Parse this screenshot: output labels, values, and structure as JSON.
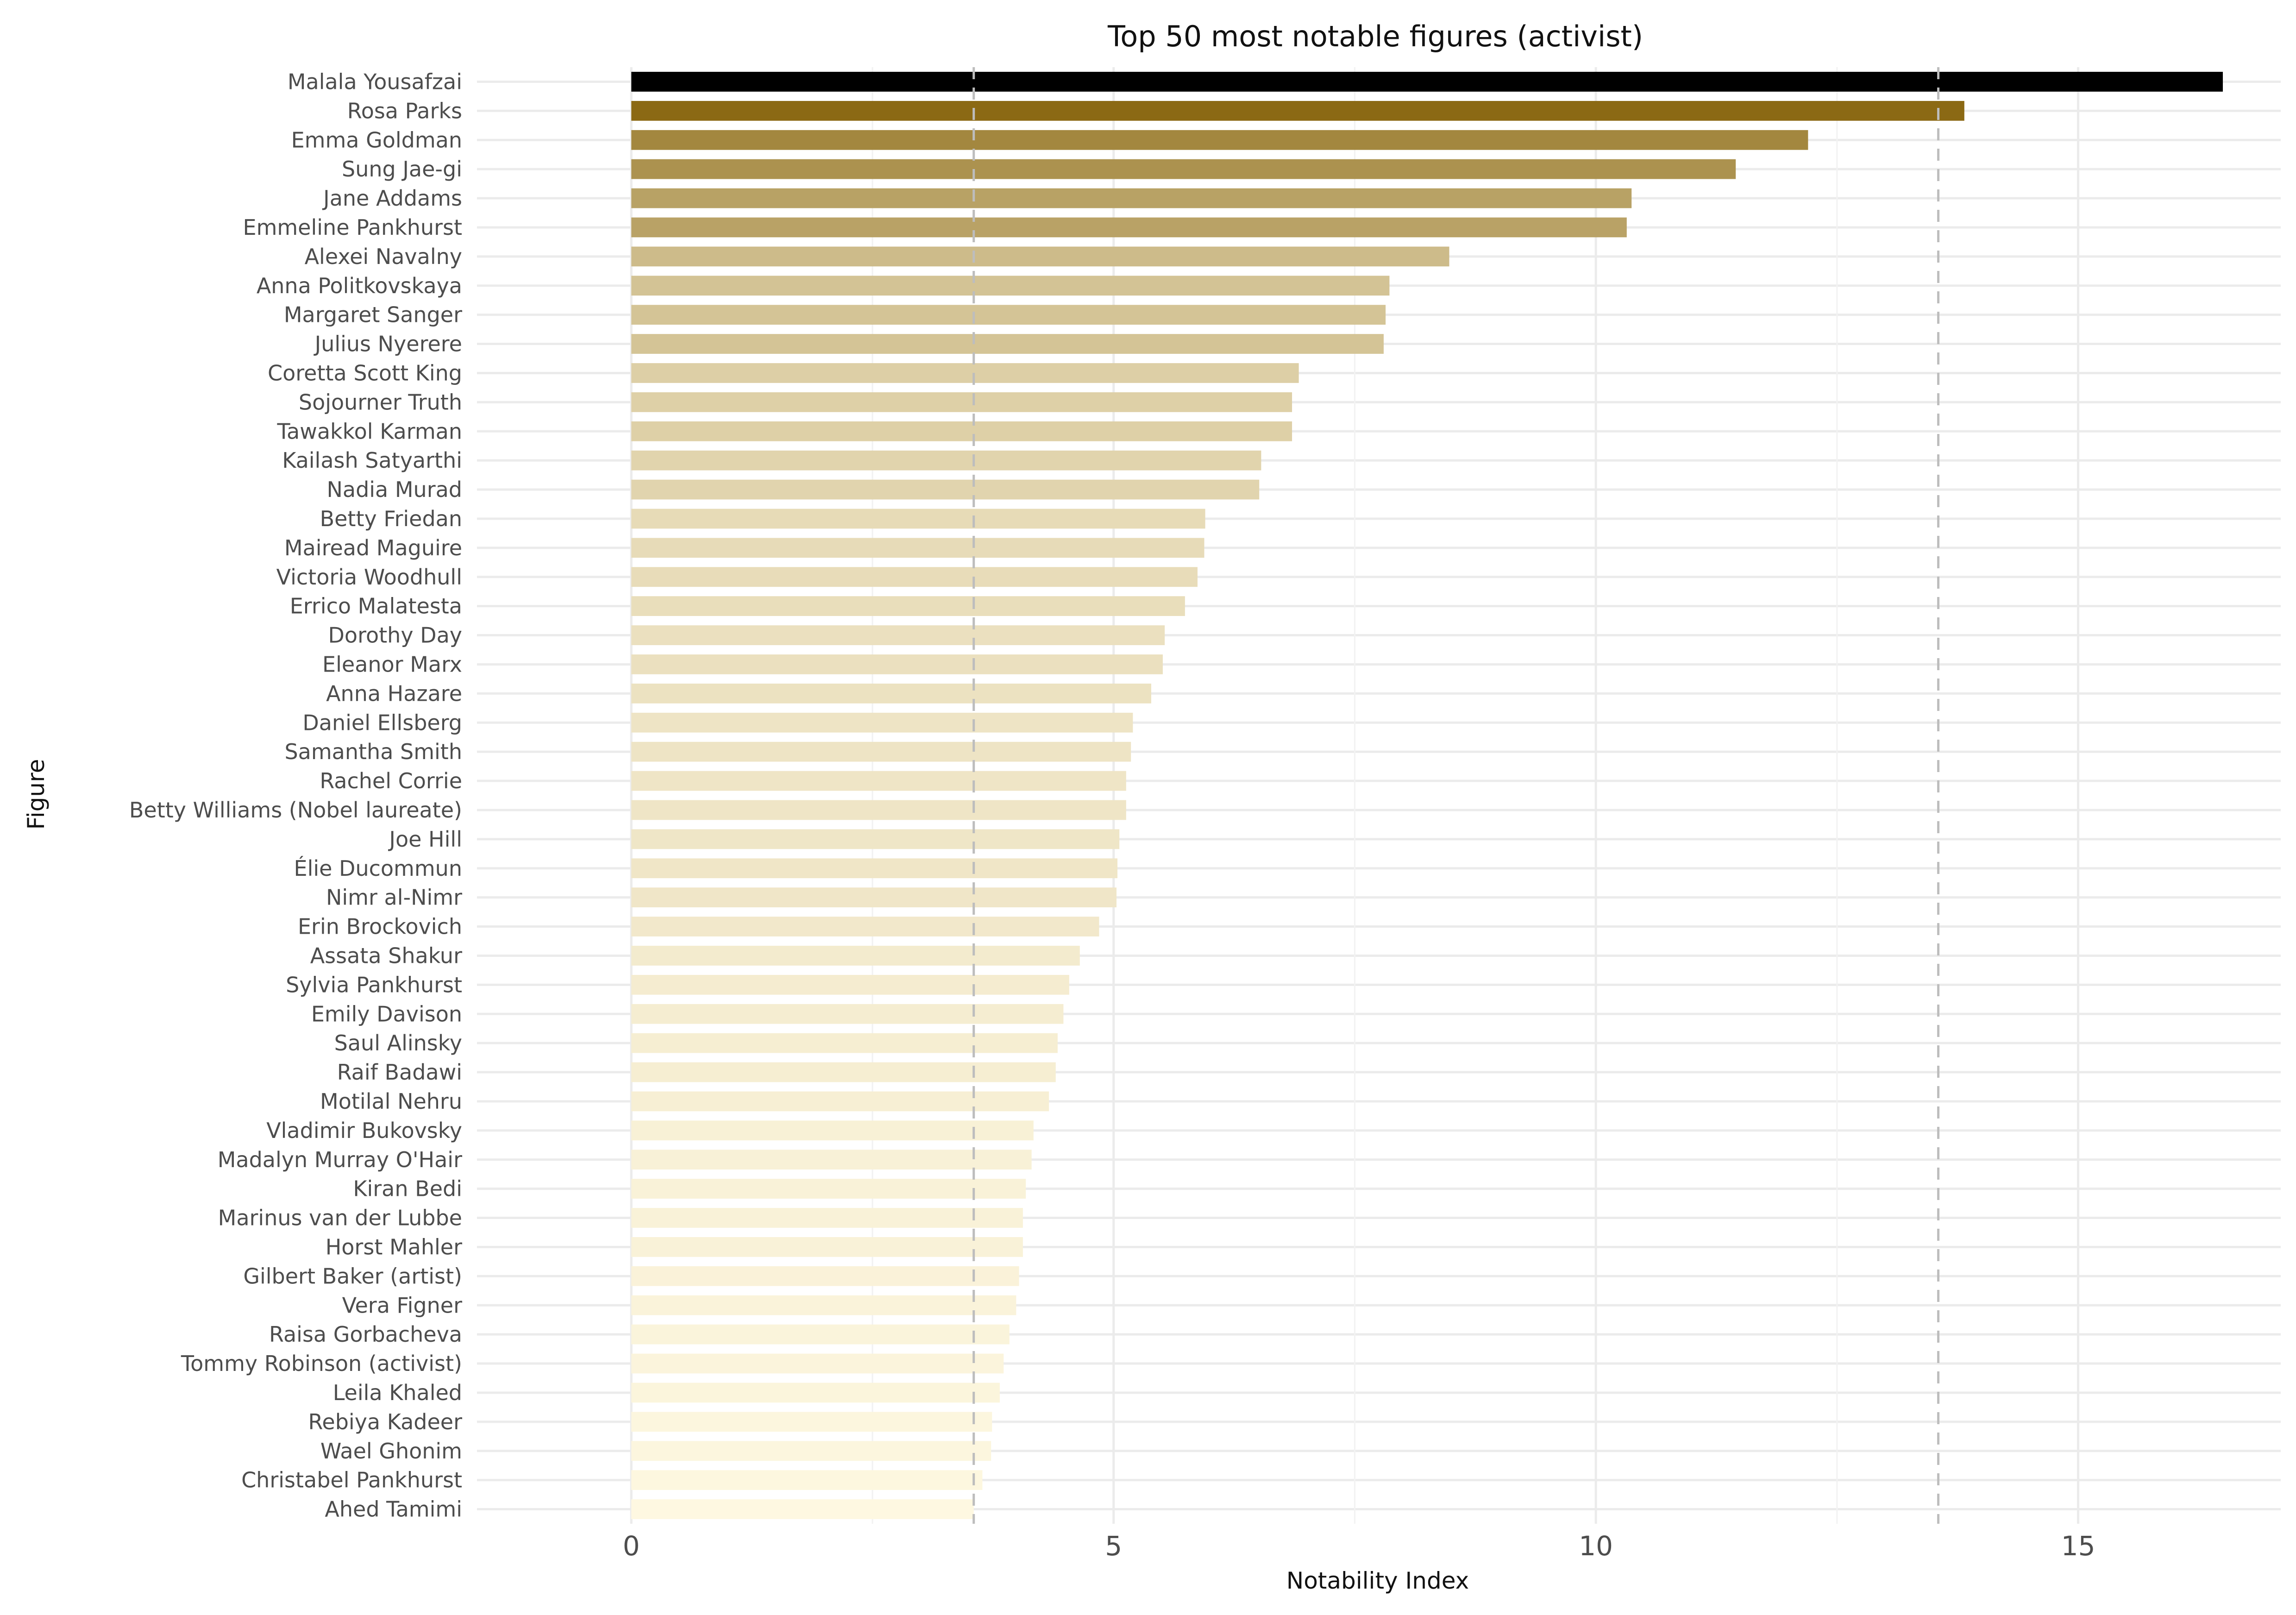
{
  "chart_data": {
    "type": "bar",
    "orientation": "horizontal",
    "title": "Top 50 most notable figures (activist)",
    "xlabel": "Notability Index",
    "ylabel": "Figure",
    "xlim": [
      -1.6,
      17.1
    ],
    "xticks": [
      0,
      5,
      10,
      15
    ],
    "grid": true,
    "reference_lines": [
      3.55,
      13.55
    ],
    "color_scale": {
      "high": "#000000",
      "second": "#8b6914",
      "low": "#fef8e1"
    },
    "categories": [
      "Malala Yousafzai",
      "Rosa Parks",
      "Emma Goldman",
      "Sung Jae-gi",
      "Jane Addams",
      "Emmeline Pankhurst",
      "Alexei Navalny",
      "Anna Politkovskaya",
      "Margaret Sanger",
      "Julius Nyerere",
      "Coretta Scott King",
      "Sojourner Truth",
      "Tawakkol Karman",
      "Kailash Satyarthi",
      "Nadia Murad",
      "Betty Friedan",
      "Mairead Maguire",
      "Victoria Woodhull",
      "Errico Malatesta",
      "Dorothy Day",
      "Eleanor Marx",
      "Anna Hazare",
      "Daniel Ellsberg",
      "Samantha Smith",
      "Rachel Corrie",
      "Betty Williams (Nobel laureate)",
      "Joe Hill",
      "Élie Ducommun",
      "Nimr al-Nimr",
      "Erin Brockovich",
      "Assata Shakur",
      "Sylvia Pankhurst",
      "Emily Davison",
      "Saul Alinsky",
      "Raif Badawi",
      "Motilal Nehru",
      "Vladimir Bukovsky",
      "Madalyn Murray O'Hair",
      "Kiran Bedi",
      "Marinus van der Lubbe",
      "Horst Mahler",
      "Gilbert Baker (artist)",
      "Vera Figner",
      "Raisa Gorbacheva",
      "Tommy Robinson (activist)",
      "Leila Khaled",
      "Rebiya Kadeer",
      "Wael Ghonim",
      "Christabel Pankhurst",
      "Ahed Tamimi"
    ],
    "values": [
      16.5,
      13.82,
      12.2,
      11.45,
      10.37,
      10.32,
      8.48,
      7.86,
      7.82,
      7.8,
      6.92,
      6.85,
      6.85,
      6.53,
      6.51,
      5.95,
      5.94,
      5.87,
      5.74,
      5.53,
      5.51,
      5.39,
      5.2,
      5.18,
      5.13,
      5.13,
      5.06,
      5.04,
      5.03,
      4.85,
      4.65,
      4.54,
      4.48,
      4.42,
      4.4,
      4.33,
      4.17,
      4.15,
      4.09,
      4.06,
      4.06,
      4.02,
      3.99,
      3.92,
      3.86,
      3.82,
      3.74,
      3.73,
      3.64,
      3.55
    ]
  }
}
